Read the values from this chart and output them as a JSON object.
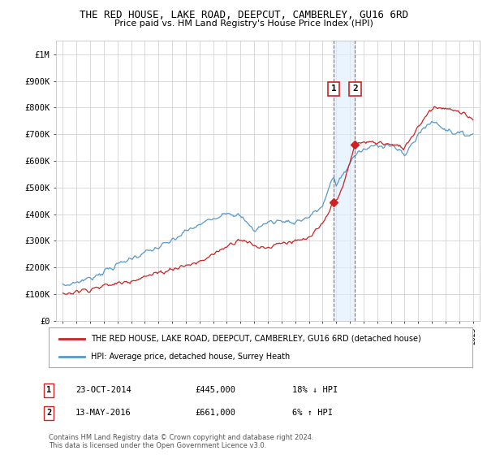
{
  "title": "THE RED HOUSE, LAKE ROAD, DEEPCUT, CAMBERLEY, GU16 6RD",
  "subtitle": "Price paid vs. HM Land Registry's House Price Index (HPI)",
  "ylabel_ticks": [
    "£0",
    "£100K",
    "£200K",
    "£300K",
    "£400K",
    "£500K",
    "£600K",
    "£700K",
    "£800K",
    "£900K",
    "£1M"
  ],
  "ytick_values": [
    0,
    100000,
    200000,
    300000,
    400000,
    500000,
    600000,
    700000,
    800000,
    900000,
    1000000
  ],
  "ylim": [
    0,
    1050000
  ],
  "xlim_start": 1994.5,
  "xlim_end": 2025.5,
  "hpi_color": "#5599cc",
  "price_color": "#cc2222",
  "transaction1_date": 2014.81,
  "transaction1_price": 445000,
  "transaction1_label": "1",
  "transaction2_date": 2016.37,
  "transaction2_price": 661000,
  "transaction2_label": "2",
  "legend_line1": "THE RED HOUSE, LAKE ROAD, DEEPCUT, CAMBERLEY, GU16 6RD (detached house)",
  "legend_line2": "HPI: Average price, detached house, Surrey Heath",
  "footnote1": "Contains HM Land Registry data © Crown copyright and database right 2024.",
  "footnote2": "This data is licensed under the Open Government Licence v3.0.",
  "table_row1_num": "1",
  "table_row1_date": "23-OCT-2014",
  "table_row1_price": "£445,000",
  "table_row1_hpi": "18% ↓ HPI",
  "table_row2_num": "2",
  "table_row2_date": "13-MAY-2016",
  "table_row2_price": "£661,000",
  "table_row2_hpi": "6% ↑ HPI",
  "background_color": "#ffffff",
  "grid_color": "#cccccc",
  "shade_color": "#ddeeff"
}
